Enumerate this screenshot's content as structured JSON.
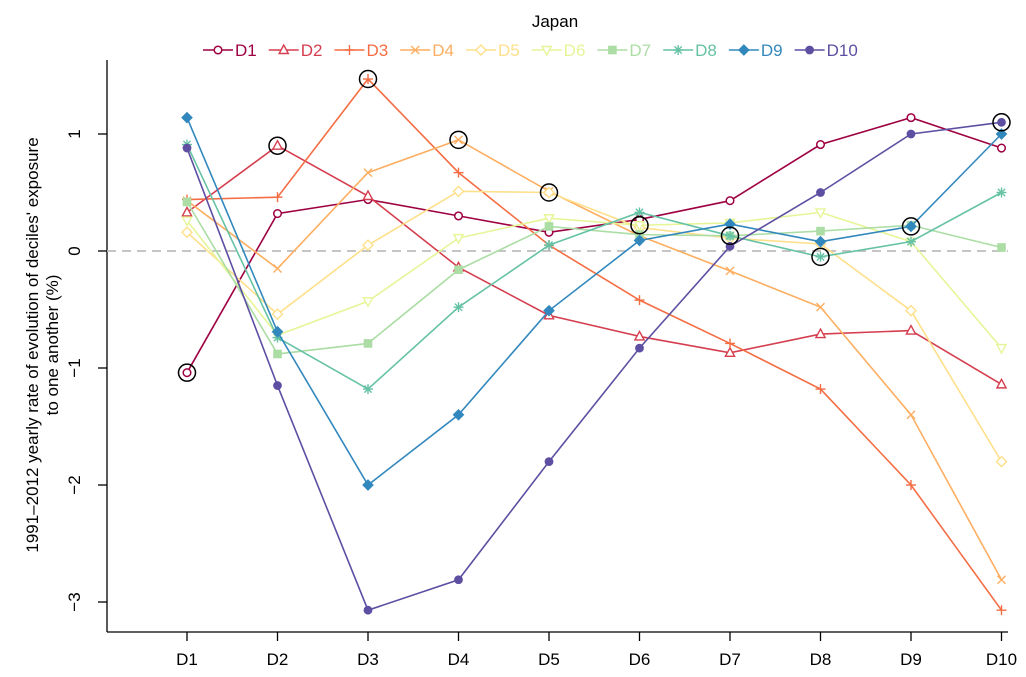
{
  "chart_data": {
    "type": "line",
    "title": "Japan",
    "xlabel": "",
    "ylabel_line1": "1991–2012 yearly rate of evolution of deciles' exposure",
    "ylabel_line2": "to one another (%)",
    "categories": [
      "D1",
      "D2",
      "D3",
      "D4",
      "D5",
      "D6",
      "D7",
      "D8",
      "D9",
      "D10"
    ],
    "ylim": [
      -3.25,
      1.5
    ],
    "yticks": [
      {
        "value": 1,
        "label": "1"
      },
      {
        "value": 0,
        "label": "0"
      },
      {
        "value": -1,
        "label": "−1"
      },
      {
        "value": -2,
        "label": "−2"
      },
      {
        "value": -3,
        "label": "−3"
      }
    ],
    "reference_line": 0,
    "legend_position": "top",
    "series": [
      {
        "name": "D1",
        "color": "#9e0142",
        "marker": "circle",
        "values": [
          -1.04,
          0.32,
          0.44,
          0.3,
          0.16,
          0.27,
          0.43,
          0.91,
          1.14,
          0.88
        ]
      },
      {
        "name": "D2",
        "color": "#d53e4f",
        "marker": "triangle",
        "values": [
          0.33,
          0.9,
          0.47,
          -0.14,
          -0.55,
          -0.73,
          -0.87,
          -0.71,
          -0.68,
          -1.14
        ]
      },
      {
        "name": "D3",
        "color": "#f46d43",
        "marker": "plus",
        "values": [
          0.44,
          0.46,
          1.47,
          0.67,
          0.05,
          -0.42,
          -0.79,
          -1.18,
          -2.0,
          -3.07
        ]
      },
      {
        "name": "D4",
        "color": "#fdae61",
        "marker": "x",
        "values": [
          0.43,
          -0.15,
          0.67,
          0.95,
          0.51,
          0.13,
          -0.17,
          -0.48,
          -1.4,
          -2.81
        ]
      },
      {
        "name": "D5",
        "color": "#fee08b",
        "marker": "diamond",
        "values": [
          0.16,
          -0.54,
          0.05,
          0.51,
          0.5,
          0.2,
          0.11,
          0.06,
          -0.51,
          -1.8
        ]
      },
      {
        "name": "D6",
        "color": "#e6f598",
        "marker": "triangle-down",
        "values": [
          0.26,
          -0.72,
          -0.43,
          0.11,
          0.28,
          0.22,
          0.24,
          0.33,
          0.08,
          -0.83
        ]
      },
      {
        "name": "D7",
        "color": "#abdda4",
        "marker": "square",
        "values": [
          0.42,
          -0.88,
          -0.79,
          -0.16,
          0.21,
          0.14,
          0.13,
          0.17,
          0.22,
          0.03
        ]
      },
      {
        "name": "D8",
        "color": "#66c2a5",
        "marker": "asterisk",
        "values": [
          0.91,
          -0.74,
          -1.18,
          -0.48,
          0.05,
          0.33,
          0.13,
          -0.05,
          0.08,
          0.5
        ]
      },
      {
        "name": "D9",
        "color": "#3288bd",
        "marker": "filled-diamond",
        "values": [
          1.14,
          -0.69,
          -2.0,
          -1.4,
          -0.51,
          0.09,
          0.23,
          0.08,
          0.21,
          1.0
        ]
      },
      {
        "name": "D10",
        "color": "#5e4fa2",
        "marker": "filled-circle",
        "values": [
          0.88,
          -1.15,
          -3.07,
          -2.81,
          -1.8,
          -0.83,
          0.04,
          0.5,
          1.0,
          1.1
        ]
      }
    ],
    "highlighted_points": [
      {
        "series": "D1",
        "category": "D1"
      },
      {
        "series": "D2",
        "category": "D2"
      },
      {
        "series": "D3",
        "category": "D3"
      },
      {
        "series": "D4",
        "category": "D4"
      },
      {
        "series": "D5",
        "category": "D5"
      },
      {
        "series": "D6",
        "category": "D6"
      },
      {
        "series": "D7",
        "category": "D7"
      },
      {
        "series": "D8",
        "category": "D8"
      },
      {
        "series": "D9",
        "category": "D9"
      },
      {
        "series": "D10",
        "category": "D10"
      }
    ]
  }
}
